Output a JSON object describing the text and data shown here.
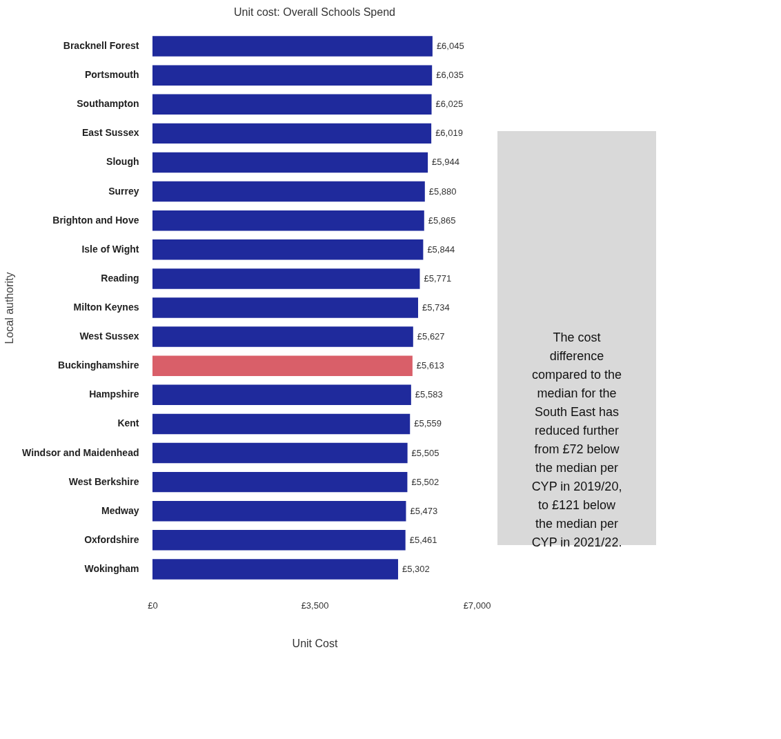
{
  "chart_data": {
    "type": "bar",
    "orientation": "horizontal",
    "title": "Unit cost: Overall Schools Spend",
    "xlabel": "Unit Cost",
    "ylabel": "Local authority",
    "categories": [
      "Bracknell Forest",
      "Portsmouth",
      "Southampton",
      "East Sussex",
      "Slough",
      "Surrey",
      "Brighton and Hove",
      "Isle of Wight",
      "Reading",
      "Milton Keynes",
      "West Sussex",
      "Buckinghamshire",
      "Hampshire",
      "Kent",
      "Windsor and Maidenhead",
      "West Berkshire",
      "Medway",
      "Oxfordshire",
      "Wokingham"
    ],
    "values": [
      6045,
      6035,
      6025,
      6019,
      5944,
      5880,
      5865,
      5844,
      5771,
      5734,
      5627,
      5613,
      5583,
      5559,
      5505,
      5502,
      5473,
      5461,
      5302
    ],
    "value_labels": [
      "£6,045",
      "£6,035",
      "£6,025",
      "£6,019",
      "£5,944",
      "£5,880",
      "£5,865",
      "£5,844",
      "£5,771",
      "£5,734",
      "£5,627",
      "£5,613",
      "£5,583",
      "£5,559",
      "£5,505",
      "£5,502",
      "£5,473",
      "£5,461",
      "£5,302"
    ],
    "colors": [
      "#1f2a9c",
      "#1f2a9c",
      "#1f2a9c",
      "#1f2a9c",
      "#1f2a9c",
      "#1f2a9c",
      "#1f2a9c",
      "#1f2a9c",
      "#1f2a9c",
      "#1f2a9c",
      "#1f2a9c",
      "#d95f69",
      "#1f2a9c",
      "#1f2a9c",
      "#1f2a9c",
      "#1f2a9c",
      "#1f2a9c",
      "#1f2a9c",
      "#1f2a9c"
    ],
    "xlim": [
      0,
      7000
    ],
    "xticks": [
      {
        "value": 0,
        "label": "£0"
      },
      {
        "value": 3500,
        "label": "£3,500"
      },
      {
        "value": 7000,
        "label": "£7,000"
      }
    ],
    "grid": false,
    "annotations": [
      "The cost difference compared to the median for the South East has reduced further from £72 below the median per CYP in 2019/20, to £121 below the median per CYP in 2021/22."
    ]
  }
}
